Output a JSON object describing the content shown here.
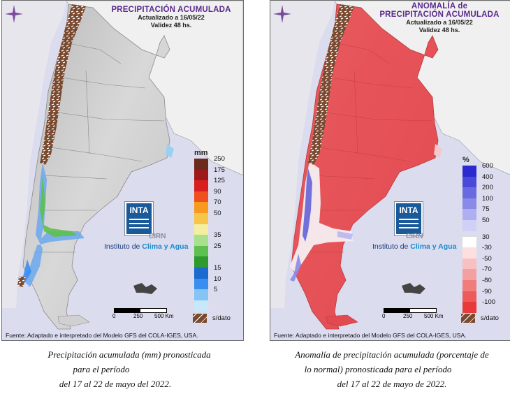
{
  "left_map": {
    "title": "PRECIPITACIÓN ACUMULADA",
    "updated": "Actualizado a 16/05/22",
    "validity": "Validez 48 hs.",
    "legend_unit": "mm",
    "legend": [
      {
        "label": "250",
        "color": "#6b2a1c"
      },
      {
        "label": "175",
        "color": "#9e1a1a"
      },
      {
        "label": "125",
        "color": "#d81e1e"
      },
      {
        "label": "90",
        "color": "#f0501e"
      },
      {
        "label": "70",
        "color": "#f79a1e"
      },
      {
        "label": "50",
        "color": "#f7c54a"
      },
      {
        "label": "",
        "color": "#f4eea0"
      },
      {
        "label": "35",
        "color": "#a8e08c"
      },
      {
        "label": "25",
        "color": "#5ec050"
      },
      {
        "label": "",
        "color": "#2e9a2e"
      },
      {
        "label": "15",
        "color": "#1a6ad0"
      },
      {
        "label": "10",
        "color": "#3a8ef0"
      },
      {
        "label": "5",
        "color": "#86c4f6"
      },
      {
        "label": "",
        "color": "#c8e8fa"
      }
    ],
    "no_data_label": "s/dato",
    "logo_text": "INTA",
    "cirn_text": "CIRN",
    "institute_prefix": "Instituto de ",
    "institute_highlight": "Clima y Agua",
    "scale_labels": [
      "0",
      "250",
      "500 Km"
    ],
    "source": "Fuente: Adaptado e interpretado del Modelo GFS del COLA-IGES, USA."
  },
  "right_map": {
    "title_line1": "ANOMALÍA de",
    "title_line2": "PRECIPITACIÓN ACUMULADA",
    "updated": "Actualizado a 16/05/22",
    "validity": "Validez 48 hs.",
    "legend_unit": "%",
    "legend_top": [
      {
        "label": "600",
        "color": "#2a2ad0"
      },
      {
        "label": "400",
        "color": "#4a4ad8"
      },
      {
        "label": "200",
        "color": "#6a6ae0"
      },
      {
        "label": "100",
        "color": "#8a8ae8"
      },
      {
        "label": "75",
        "color": "#aeaef0"
      },
      {
        "label": "50",
        "color": "#d0d0f6"
      }
    ],
    "legend_bottom": [
      {
        "label": "30",
        "color": "#ffffff"
      },
      {
        "label": "-30",
        "color": "#fce0e0"
      },
      {
        "label": "-50",
        "color": "#f8c0c0"
      },
      {
        "label": "-70",
        "color": "#f4a0a0"
      },
      {
        "label": "-80",
        "color": "#f07c7c"
      },
      {
        "label": "-90",
        "color": "#ec5a5a"
      },
      {
        "label": "-100",
        "color": "#e83a3a"
      }
    ],
    "no_data_label": "s/dato",
    "logo_text": "INTA",
    "cirn_text": "CIRN",
    "institute_prefix": "Instituto de ",
    "institute_highlight": "Clima y Agua",
    "scale_labels": [
      "0",
      "250",
      "500 Km"
    ],
    "source": "Fuente: Adaptado e interpretado del Modelo GFS del COLA-IGES, USA."
  },
  "captions": {
    "left": [
      "Precipitación acumulada (mm) pronosticada",
      "para el período",
      "del 17 al 22  de mayo del 2022."
    ],
    "right": [
      "Anomalía de precipitación acumulada (porcentaje de",
      "lo normal) pronosticada para el período",
      "del 17 al 22 de mayo de 2022."
    ]
  },
  "colors": {
    "title_purple": "#5b2a8e",
    "ocean": "#dcdcef",
    "anomaly_red": "#e8565c",
    "neighbor_land": "#f0f0f0",
    "no_data_brown": "#7a4a30"
  }
}
